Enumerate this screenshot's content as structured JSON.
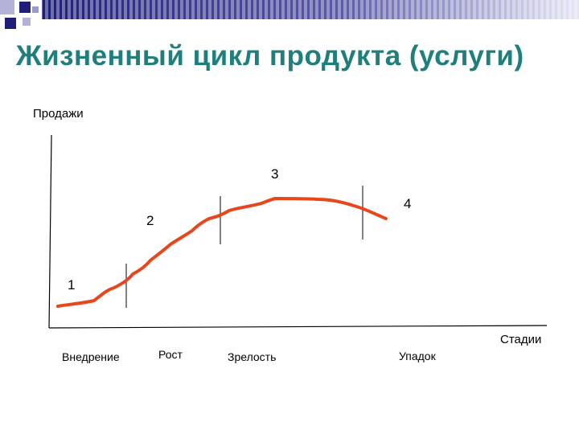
{
  "title": "Жизненный цикл продукта (услуги)",
  "diagram": {
    "y_axis_label": "Продажи",
    "x_axis_label": "Стадии",
    "stage_numbers": [
      "1",
      "2",
      "3",
      "4"
    ],
    "stage_names": [
      "Внедрение",
      "Рост",
      "Зрелость",
      "Упадок"
    ],
    "curve_color": "#e8461c",
    "axis_color": "#000000"
  },
  "colors": {
    "title": "#1f7f7c",
    "band_dark": "#1f1f7a",
    "band_light": "#c7c7e8"
  }
}
